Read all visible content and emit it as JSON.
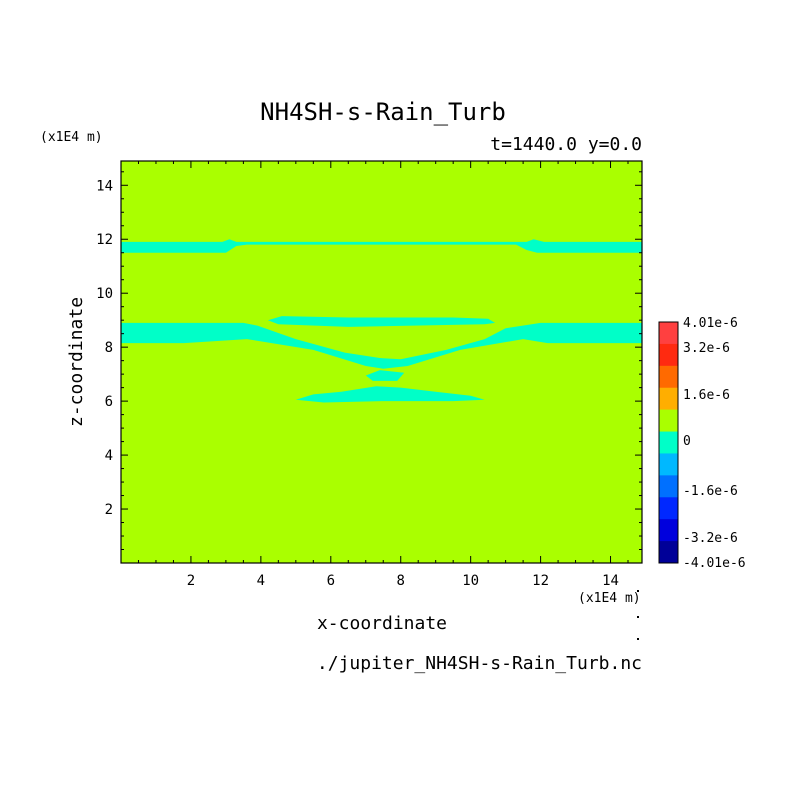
{
  "chart_data": {
    "type": "heatmap",
    "title": "NH4SH-s-Rain_Turb",
    "subtitle": "t=1440.0 y=0.0",
    "xlabel": "x-coordinate",
    "ylabel": "z-coordinate",
    "x_unit": "(x1E4 m)",
    "z_unit": "(x1E4 m)",
    "footer": "./jupiter_NH4SH-s-Rain_Turb.nc",
    "xlim": [
      0,
      14.9
    ],
    "ylim": [
      0,
      14.9
    ],
    "x_ticks": [
      "2",
      "4",
      "6",
      "8",
      "10",
      "12",
      "14"
    ],
    "y_ticks": [
      "2",
      "4",
      "6",
      "8",
      "10",
      "12",
      "14"
    ],
    "background_level_color": "#aaff00",
    "features": [
      {
        "name": "upper-band",
        "color": "#00ffc8",
        "outline": [
          [
            0,
            11.5
          ],
          [
            3.0,
            11.5
          ],
          [
            3.3,
            11.75
          ],
          [
            3.6,
            11.8
          ],
          [
            11.3,
            11.8
          ],
          [
            11.6,
            11.6
          ],
          [
            11.9,
            11.5
          ],
          [
            14.9,
            11.5
          ],
          [
            14.9,
            11.9
          ],
          [
            12.1,
            11.9
          ],
          [
            11.8,
            12.0
          ],
          [
            11.6,
            11.9
          ],
          [
            3.3,
            11.9
          ],
          [
            3.1,
            12.0
          ],
          [
            2.9,
            11.9
          ],
          [
            0,
            11.9
          ]
        ]
      },
      {
        "name": "dome-arc",
        "color": "#00ffc8",
        "outline": [
          [
            4.2,
            9.0
          ],
          [
            4.6,
            9.15
          ],
          [
            6.5,
            9.1
          ],
          [
            9.5,
            9.1
          ],
          [
            10.5,
            9.05
          ],
          [
            10.7,
            8.9
          ],
          [
            10.4,
            8.85
          ],
          [
            6.5,
            8.75
          ],
          [
            4.5,
            8.85
          ]
        ]
      },
      {
        "name": "middle-band-v",
        "color": "#00ffc8",
        "outline": [
          [
            0,
            8.15
          ],
          [
            1.8,
            8.15
          ],
          [
            3.6,
            8.3
          ],
          [
            5.5,
            7.9
          ],
          [
            7.0,
            7.3
          ],
          [
            7.5,
            7.2
          ],
          [
            8.2,
            7.3
          ],
          [
            9.7,
            7.9
          ],
          [
            11.5,
            8.3
          ],
          [
            12.2,
            8.15
          ],
          [
            14.9,
            8.15
          ],
          [
            14.9,
            8.9
          ],
          [
            12.0,
            8.9
          ],
          [
            11.0,
            8.7
          ],
          [
            10.4,
            8.3
          ],
          [
            9.3,
            7.9
          ],
          [
            8.0,
            7.55
          ],
          [
            7.4,
            7.6
          ],
          [
            6.4,
            7.8
          ],
          [
            5.0,
            8.3
          ],
          [
            3.9,
            8.8
          ],
          [
            3.5,
            8.9
          ],
          [
            0,
            8.9
          ]
        ]
      },
      {
        "name": "small-lens",
        "color": "#00ffc8",
        "outline": [
          [
            7.0,
            6.95
          ],
          [
            7.4,
            7.15
          ],
          [
            8.1,
            7.05
          ],
          [
            7.9,
            6.75
          ],
          [
            7.2,
            6.75
          ]
        ]
      },
      {
        "name": "lower-lens",
        "color": "#00ffc8",
        "outline": [
          [
            5.0,
            6.05
          ],
          [
            5.5,
            6.25
          ],
          [
            6.3,
            6.35
          ],
          [
            7.3,
            6.55
          ],
          [
            8.0,
            6.5
          ],
          [
            9.0,
            6.35
          ],
          [
            10.0,
            6.2
          ],
          [
            10.4,
            6.05
          ],
          [
            9.5,
            6.0
          ],
          [
            7.5,
            6.0
          ],
          [
            5.8,
            5.95
          ]
        ]
      }
    ],
    "colorbar": {
      "labels": [
        "4.01e-6",
        "3.2e-6",
        "1.6e-6",
        "0",
        "-1.6e-6",
        "-3.2e-6",
        "-4.01e-6"
      ],
      "levels_top_to_bottom": [
        {
          "color": "#ff4040"
        },
        {
          "color": "#ff2a10"
        },
        {
          "color": "#ff6a00"
        },
        {
          "color": "#ffae00"
        },
        {
          "color": "#aaff00"
        },
        {
          "color": "#00ffc8"
        },
        {
          "color": "#00b8ff"
        },
        {
          "color": "#0070ff"
        },
        {
          "color": "#0028ff"
        },
        {
          "color": "#0000dd"
        },
        {
          "color": "#000098"
        }
      ]
    }
  }
}
